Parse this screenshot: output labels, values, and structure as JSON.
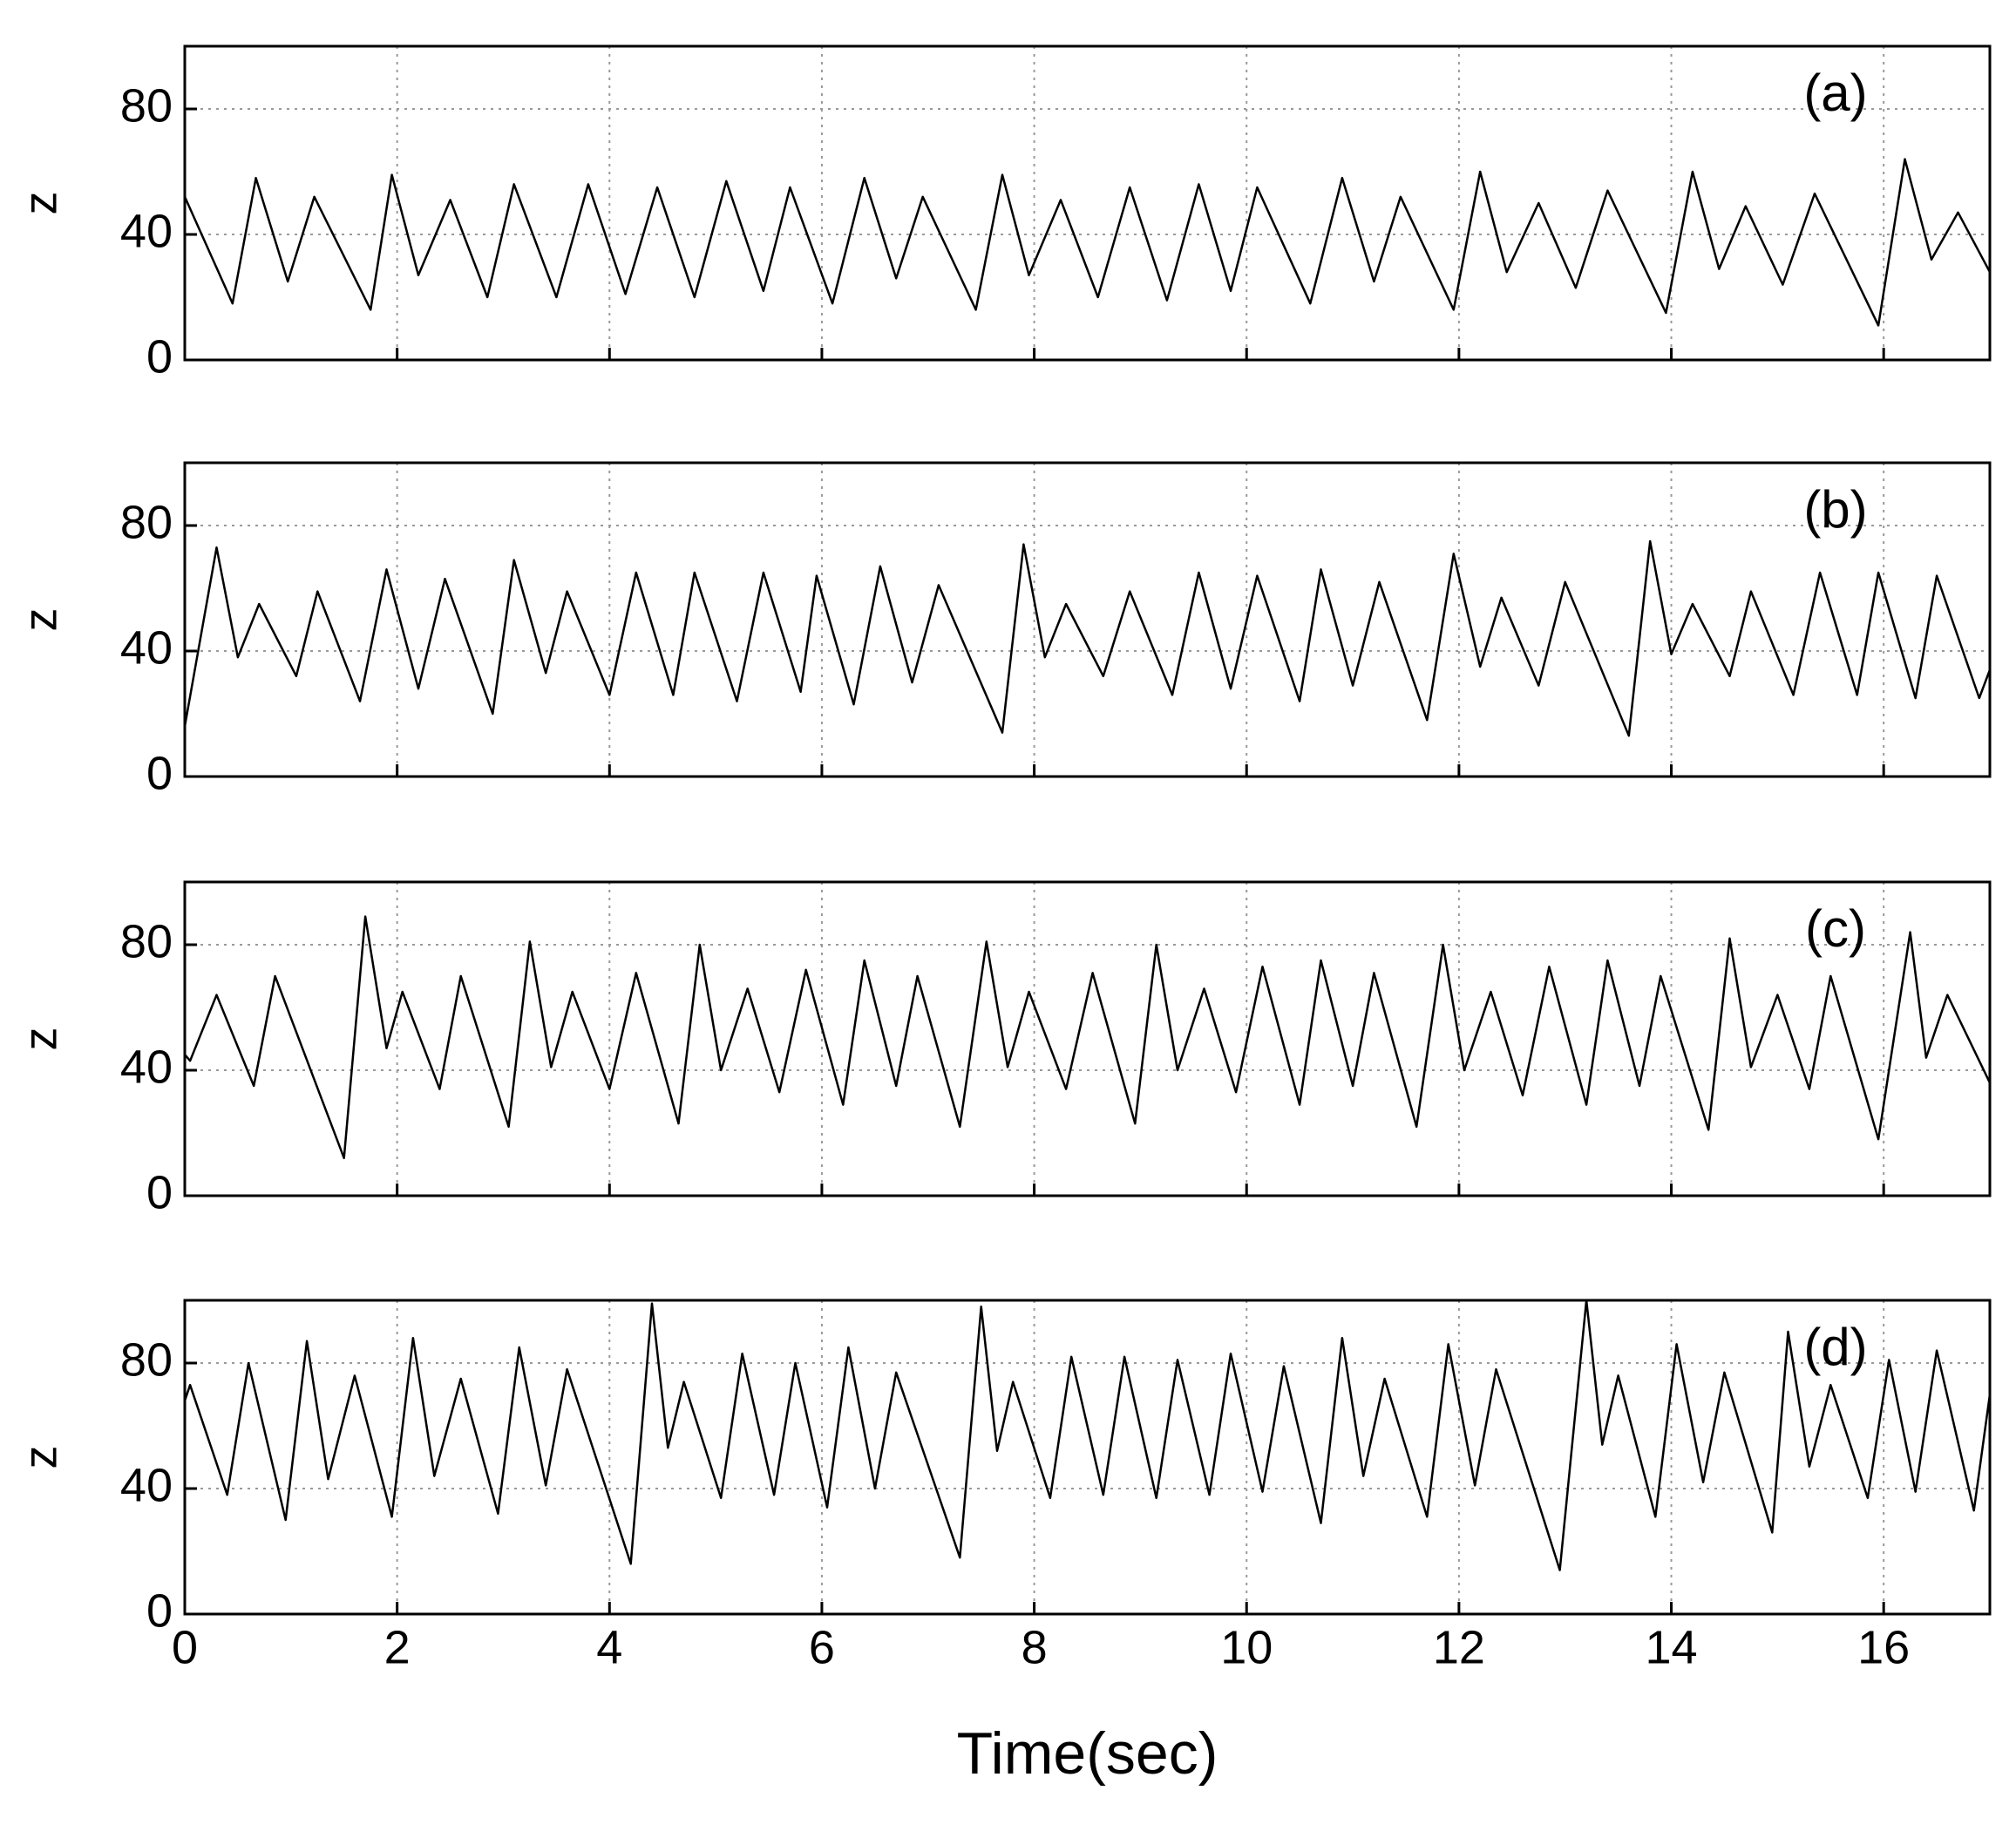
{
  "chart_data": [
    {
      "type": "line",
      "label": "(a)",
      "ylabel": "z",
      "x": [
        0,
        0.45,
        0.67,
        0.97,
        1.22,
        1.75,
        1.95,
        2.2,
        2.5,
        2.85,
        3.1,
        3.5,
        3.8,
        4.15,
        4.45,
        4.8,
        5.1,
        5.45,
        5.7,
        6.1,
        6.4,
        6.7,
        6.95,
        7.45,
        7.7,
        7.95,
        8.25,
        8.6,
        8.9,
        9.25,
        9.55,
        9.85,
        10.1,
        10.6,
        10.9,
        11.2,
        11.45,
        11.95,
        12.2,
        12.45,
        12.75,
        13.1,
        13.4,
        13.95,
        14.2,
        14.45,
        14.7,
        15.05,
        15.35,
        15.95,
        16.2,
        16.45,
        16.7,
        17
      ],
      "series": [
        {
          "color": "#000000",
          "values": [
            52,
            18,
            58,
            25,
            52,
            16,
            59,
            27,
            51,
            20,
            56,
            20,
            56,
            21,
            55,
            20,
            57,
            22,
            55,
            18,
            58,
            26,
            52,
            16,
            59,
            27,
            51,
            20,
            55,
            19,
            56,
            22,
            55,
            18,
            58,
            25,
            52,
            16,
            60,
            28,
            50,
            23,
            54,
            15,
            60,
            29,
            49,
            24,
            53,
            11,
            64,
            32,
            47,
            28
          ]
        }
      ],
      "xlim": [
        0,
        17
      ],
      "ylim": [
        0,
        100
      ],
      "xticks": [
        0,
        2,
        4,
        6,
        8,
        10,
        12,
        14,
        16
      ],
      "yticks": [
        0,
        40,
        80
      ],
      "grid": true
    },
    {
      "type": "line",
      "label": "(b)",
      "ylabel": "z",
      "x": [
        0,
        0.3,
        0.5,
        0.7,
        1.05,
        1.25,
        1.65,
        1.9,
        2.2,
        2.45,
        2.9,
        3.1,
        3.4,
        3.6,
        4.0,
        4.25,
        4.6,
        4.8,
        5.2,
        5.45,
        5.8,
        5.95,
        6.3,
        6.55,
        6.85,
        7.1,
        7.7,
        7.9,
        8.1,
        8.3,
        8.65,
        8.9,
        9.3,
        9.55,
        9.85,
        10.1,
        10.5,
        10.7,
        11.0,
        11.25,
        11.7,
        11.95,
        12.2,
        12.4,
        12.75,
        13.0,
        13.6,
        13.8,
        14.0,
        14.2,
        14.55,
        14.75,
        15.15,
        15.4,
        15.75,
        15.95,
        16.3,
        16.5,
        16.9,
        17
      ],
      "series": [
        {
          "color": "#000000",
          "values": [
            16,
            73,
            38,
            55,
            32,
            59,
            24,
            66,
            28,
            63,
            20,
            69,
            33,
            59,
            26,
            65,
            26,
            65,
            24,
            65,
            27,
            64,
            23,
            67,
            30,
            61,
            14,
            74,
            38,
            55,
            32,
            59,
            26,
            65,
            28,
            64,
            24,
            66,
            29,
            62,
            18,
            71,
            35,
            57,
            29,
            62,
            13,
            75,
            39,
            55,
            32,
            59,
            26,
            65,
            26,
            65,
            25,
            64,
            25,
            34
          ]
        }
      ],
      "xlim": [
        0,
        17
      ],
      "ylim": [
        0,
        100
      ],
      "xticks": [
        0,
        2,
        4,
        6,
        8,
        10,
        12,
        14,
        16
      ],
      "yticks": [
        0,
        40,
        80
      ],
      "grid": true
    },
    {
      "type": "line",
      "label": "(c)",
      "ylabel": "z",
      "x": [
        0,
        0.05,
        0.3,
        0.65,
        0.85,
        1.5,
        1.7,
        1.9,
        2.05,
        2.4,
        2.6,
        3.05,
        3.25,
        3.45,
        3.65,
        4.0,
        4.25,
        4.65,
        4.85,
        5.05,
        5.3,
        5.6,
        5.85,
        6.2,
        6.4,
        6.7,
        6.9,
        7.3,
        7.55,
        7.75,
        7.95,
        8.3,
        8.55,
        8.95,
        9.15,
        9.35,
        9.6,
        9.9,
        10.15,
        10.5,
        10.7,
        11.0,
        11.2,
        11.6,
        11.85,
        12.05,
        12.3,
        12.6,
        12.85,
        13.2,
        13.4,
        13.7,
        13.9,
        14.35,
        14.55,
        14.75,
        15.0,
        15.3,
        15.5,
        15.95,
        16.25,
        16.4,
        16.6,
        17
      ],
      "series": [
        {
          "color": "#000000",
          "values": [
            45,
            43,
            64,
            35,
            70,
            12,
            89,
            47,
            65,
            34,
            70,
            22,
            81,
            41,
            65,
            34,
            71,
            23,
            80,
            40,
            66,
            33,
            72,
            29,
            75,
            35,
            70,
            22,
            81,
            41,
            65,
            34,
            71,
            23,
            80,
            40,
            66,
            33,
            73,
            29,
            75,
            35,
            71,
            22,
            80,
            40,
            65,
            32,
            73,
            29,
            75,
            35,
            70,
            21,
            82,
            41,
            64,
            34,
            70,
            18,
            84,
            44,
            64,
            36
          ]
        }
      ],
      "xlim": [
        0,
        17
      ],
      "ylim": [
        0,
        100
      ],
      "xticks": [
        0,
        2,
        4,
        6,
        8,
        10,
        12,
        14,
        16
      ],
      "yticks": [
        0,
        40,
        80
      ],
      "grid": true
    },
    {
      "type": "line",
      "label": "(d)",
      "ylabel": "z",
      "xlabel": "Time(sec)",
      "x": [
        0,
        0.05,
        0.4,
        0.6,
        0.95,
        1.15,
        1.35,
        1.6,
        1.95,
        2.15,
        2.35,
        2.6,
        2.95,
        3.15,
        3.4,
        3.6,
        4.2,
        4.4,
        4.55,
        4.7,
        5.05,
        5.25,
        5.55,
        5.75,
        6.05,
        6.25,
        6.5,
        6.7,
        7.3,
        7.5,
        7.65,
        7.8,
        8.15,
        8.35,
        8.65,
        8.85,
        9.15,
        9.35,
        9.65,
        9.85,
        10.15,
        10.35,
        10.7,
        10.9,
        11.1,
        11.3,
        11.7,
        11.9,
        12.15,
        12.35,
        12.95,
        13.2,
        13.35,
        13.5,
        13.85,
        14.05,
        14.3,
        14.5,
        14.95,
        15.1,
        15.3,
        15.5,
        15.85,
        16.05,
        16.3,
        16.5,
        16.85,
        17
      ],
      "series": [
        {
          "color": "#000000",
          "values": [
            68,
            73,
            38,
            80,
            30,
            87,
            43,
            76,
            31,
            88,
            44,
            75,
            32,
            85,
            41,
            78,
            16,
            99,
            53,
            74,
            37,
            83,
            38,
            80,
            34,
            85,
            40,
            77,
            18,
            98,
            52,
            74,
            37,
            82,
            38,
            82,
            37,
            81,
            38,
            83,
            39,
            79,
            29,
            88,
            44,
            75,
            31,
            86,
            41,
            78,
            14,
            100,
            54,
            76,
            31,
            86,
            42,
            77,
            26,
            90,
            47,
            73,
            37,
            81,
            39,
            84,
            33,
            70
          ]
        }
      ],
      "xlim": [
        0,
        17
      ],
      "ylim": [
        0,
        100
      ],
      "xticks": [
        0,
        2,
        4,
        6,
        8,
        10,
        12,
        14,
        16
      ],
      "yticks": [
        0,
        40,
        80
      ],
      "grid": true
    }
  ]
}
